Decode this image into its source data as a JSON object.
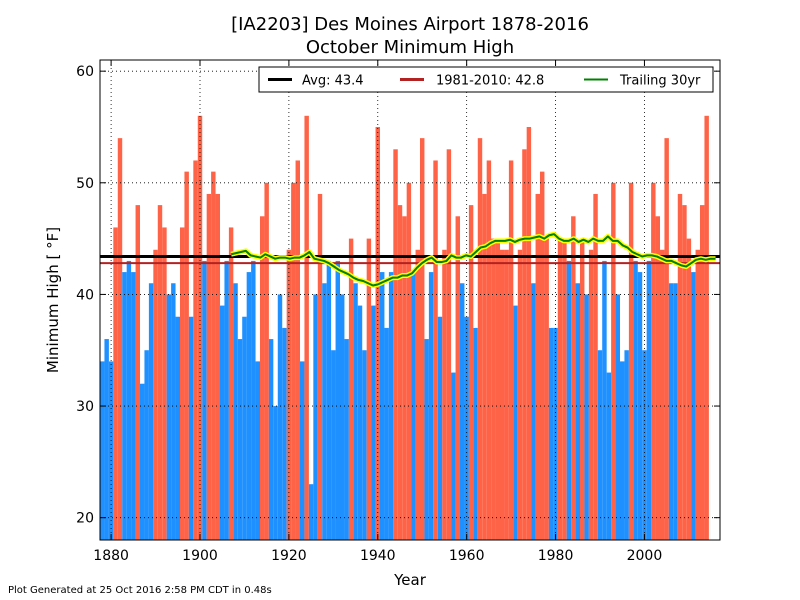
{
  "chart_data": {
    "type": "bar",
    "title_line1": "[IA2203] Des Moines Airport 1878-2016",
    "title_line2": "October Minimum High",
    "xlabel": "Year",
    "ylabel": "Minimum High [ °F]",
    "xlim": [
      1877.5,
      2017
    ],
    "ylim": [
      18,
      61
    ],
    "x_ticks": [
      1880,
      1900,
      1920,
      1940,
      1960,
      1980,
      2000
    ],
    "y_ticks": [
      20,
      30,
      40,
      50,
      60
    ],
    "grid": true,
    "legend_position": "top",
    "colors": {
      "above_avg": "#ff6347",
      "below_avg": "#1e90ff",
      "avg_line": "#000000",
      "climo_line": "#b22222",
      "trailing_line": "#008000",
      "trailing_halo": "#ffff00"
    },
    "avg_value": 43.4,
    "climo_value": 42.8,
    "legend": [
      {
        "label": "Avg: 43.4",
        "color": "#000000"
      },
      {
        "label": "1981-2010: 42.8",
        "color": "#b22222"
      },
      {
        "label": "Trailing 30yr",
        "color": "#008000"
      }
    ],
    "start_year": 1878,
    "values": [
      34,
      36,
      34,
      46,
      54,
      42,
      43,
      42,
      48,
      32,
      35,
      41,
      44,
      48,
      46,
      40,
      41,
      38,
      46,
      51,
      38,
      52,
      56,
      43,
      49,
      51,
      49,
      39,
      43,
      46,
      41,
      36,
      38,
      42,
      43,
      34,
      47,
      50,
      36,
      30,
      40,
      37,
      44,
      50,
      52,
      34,
      56,
      23,
      40,
      49,
      41,
      43,
      35,
      43,
      40,
      36,
      45,
      41,
      39,
      35,
      45,
      39,
      55,
      42,
      37,
      42,
      53,
      48,
      47,
      50,
      42,
      44,
      54,
      36,
      42,
      52,
      38,
      44,
      53,
      33,
      47,
      41,
      38,
      48,
      37,
      54,
      49,
      52,
      45,
      45,
      44,
      44,
      52,
      39,
      44,
      53,
      55,
      41,
      49,
      51,
      45,
      37,
      37,
      45,
      45,
      43,
      47,
      41,
      45,
      40,
      44,
      49,
      35,
      43,
      33,
      50,
      40,
      34,
      35,
      50,
      43,
      42,
      35,
      43,
      50,
      47,
      44,
      54,
      41,
      41,
      49,
      48,
      45,
      42,
      44,
      48,
      56
    ],
    "trailing_values": [
      43.6,
      43.7,
      43.8,
      43.9,
      43.5,
      43.4,
      43.3,
      43.6,
      43.4,
      43.2,
      43.3,
      43.3,
      43.2,
      43.3,
      43.3,
      43.5,
      43.8,
      43.2,
      43.1,
      43.0,
      42.8,
      42.5,
      42.2,
      42.0,
      41.8,
      41.5,
      41.3,
      41.2,
      41.0,
      40.8,
      40.9,
      41.1,
      41.3,
      41.5,
      41.5,
      41.7,
      41.7,
      41.9,
      42.4,
      42.8,
      43.1,
      43.3,
      42.9,
      42.9,
      43.0,
      43.5,
      43.3,
      43.3,
      43.5,
      43.4,
      43.8,
      44.2,
      44.3,
      44.6,
      44.8,
      44.8,
      44.8,
      44.9,
      44.7,
      44.9,
      45.0,
      45.0,
      45.1,
      45.2,
      45.0,
      45.3,
      45.4,
      45.0,
      44.8,
      44.8,
      45.0,
      44.7,
      44.9,
      44.7,
      45.0,
      44.8,
      44.8,
      45.2,
      44.8,
      44.8,
      44.4,
      44.2,
      43.8,
      43.6,
      43.4,
      43.5,
      43.5,
      43.4,
      43.2,
      43.0,
      43.0,
      42.8,
      42.6,
      42.5,
      42.8,
      43.1,
      43.2,
      43.1,
      43.2,
      43.2
    ]
  },
  "footer_text": "Plot Generated at 25 Oct 2016 2:58 PM CDT in 0.48s"
}
